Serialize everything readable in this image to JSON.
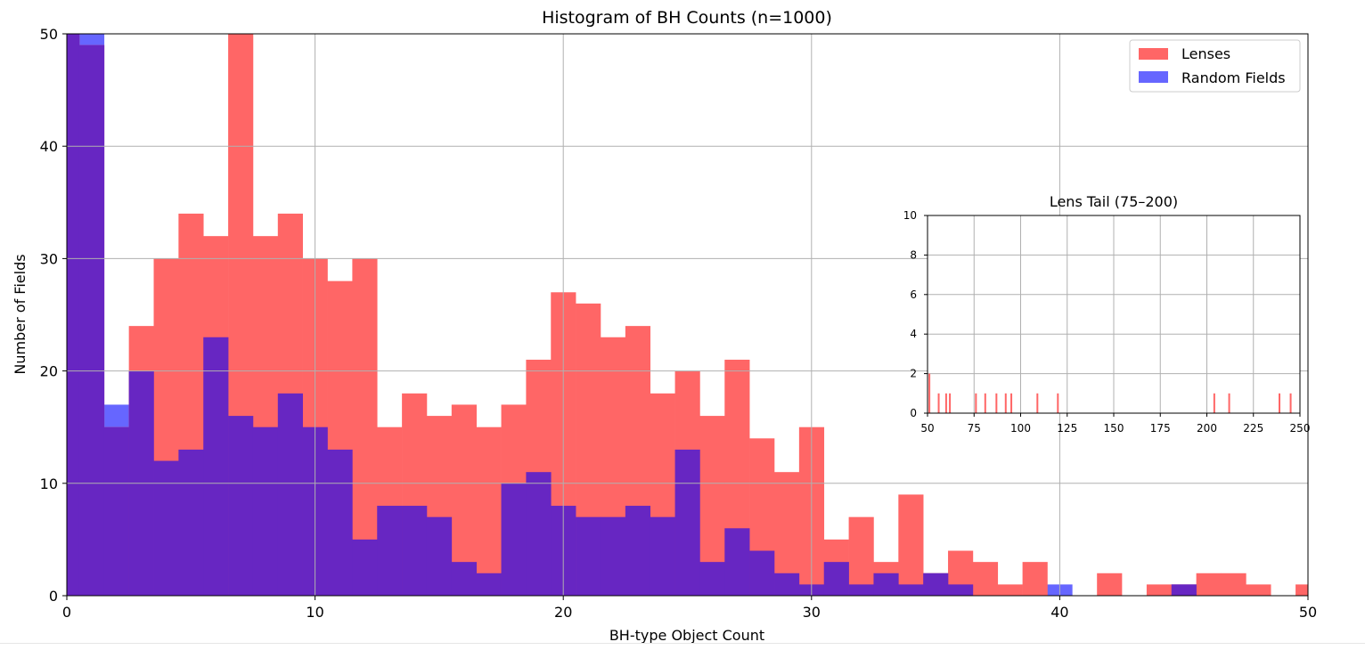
{
  "chart_data": [
    {
      "type": "bar",
      "title": "Histogram of BH Counts (n=1000)",
      "xlabel": "BH-type Object Count",
      "ylabel": "Number of Fields",
      "xlim": [
        0,
        50
      ],
      "ylim": [
        0,
        50
      ],
      "xticks": [
        "0",
        "10",
        "20",
        "30",
        "40",
        "50"
      ],
      "yticks": [
        "0",
        "10",
        "20",
        "30",
        "40",
        "50"
      ],
      "grid": true,
      "legend_position": "top-right",
      "bin_width": 1,
      "bin_start": 0,
      "series": [
        {
          "name": "Lenses",
          "color": "#ff6666",
          "values": [
            50,
            49,
            15,
            24,
            30,
            34,
            32,
            50,
            32,
            34,
            30,
            28,
            30,
            15,
            18,
            16,
            17,
            15,
            17,
            21,
            27,
            26,
            23,
            24,
            18,
            20,
            16,
            21,
            14,
            11,
            15,
            5,
            7,
            3,
            9,
            2,
            4,
            3,
            1,
            3,
            0,
            0,
            2,
            0,
            1,
            1,
            2,
            2,
            1,
            0,
            1
          ]
        },
        {
          "name": "Random Fields",
          "color": "#6666ff",
          "values": [
            50,
            50,
            17,
            20,
            12,
            13,
            23,
            16,
            15,
            18,
            15,
            13,
            5,
            8,
            8,
            7,
            3,
            2,
            10,
            11,
            8,
            7,
            7,
            8,
            7,
            13,
            3,
            6,
            4,
            2,
            1,
            3,
            1,
            2,
            1,
            2,
            1,
            0,
            0,
            0,
            1,
            0,
            0,
            0,
            0,
            1,
            0,
            0,
            0,
            0,
            0
          ]
        }
      ]
    },
    {
      "type": "bar",
      "title": "Lens Tail (75–200)",
      "xlim": [
        50,
        250
      ],
      "ylim": [
        0,
        10
      ],
      "xticks": [
        "50",
        "75",
        "100",
        "125",
        "150",
        "175",
        "200",
        "225",
        "250"
      ],
      "yticks": [
        "0",
        "2",
        "4",
        "6",
        "8",
        "10"
      ],
      "grid": true,
      "series": [
        {
          "name": "Lenses",
          "color": "#ff6666",
          "x": [
            51,
            56,
            60,
            62,
            76,
            81,
            87,
            92,
            95,
            109,
            120,
            204,
            212,
            239,
            245
          ],
          "values": [
            2,
            1,
            1,
            1,
            1,
            1,
            1,
            1,
            1,
            1,
            1,
            1,
            1,
            1,
            1
          ]
        }
      ]
    }
  ]
}
